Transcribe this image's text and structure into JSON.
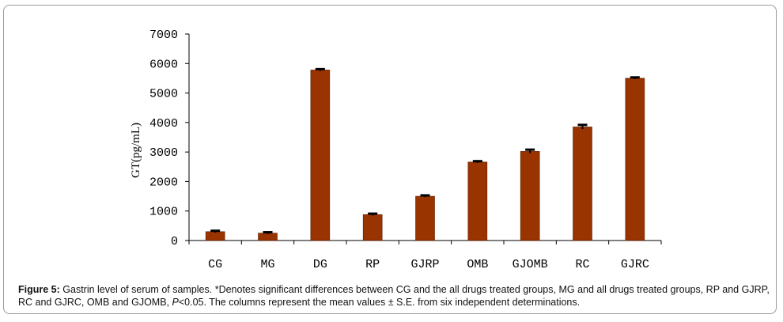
{
  "chart_data": {
    "type": "bar",
    "categories": [
      "CG",
      "MG",
      "DG",
      "RP",
      "GJRP",
      "OMB",
      "GJOMB",
      "RC",
      "GJRC"
    ],
    "values": [
      300,
      250,
      5780,
      880,
      1500,
      2660,
      3020,
      3850,
      5500
    ],
    "errors": [
      30,
      30,
      30,
      30,
      30,
      30,
      60,
      70,
      30
    ],
    "ylabel": "GT(pg/mL)",
    "ylim": [
      0,
      7000
    ],
    "yticks": [
      0,
      1000,
      2000,
      3000,
      4000,
      5000,
      6000,
      7000
    ],
    "ytick_labels": [
      "0",
      "1000",
      "2000",
      "3000",
      "4000",
      "5000",
      "6000",
      "7000"
    ],
    "bar_color": "#993300",
    "grid": false
  },
  "caption": {
    "label": "Figure 5:",
    "text_before_p": " Gastrin level of serum of samples. *Denotes significant differences between CG and the all drugs treated groups, MG and all drugs treated groups, RP and GJRP, RC and GJRC, OMB and GJOMB, ",
    "p_symbol": "P",
    "text_after_p": "<0.05. The columns represent the mean values ± S.E. from six independent determinations."
  }
}
